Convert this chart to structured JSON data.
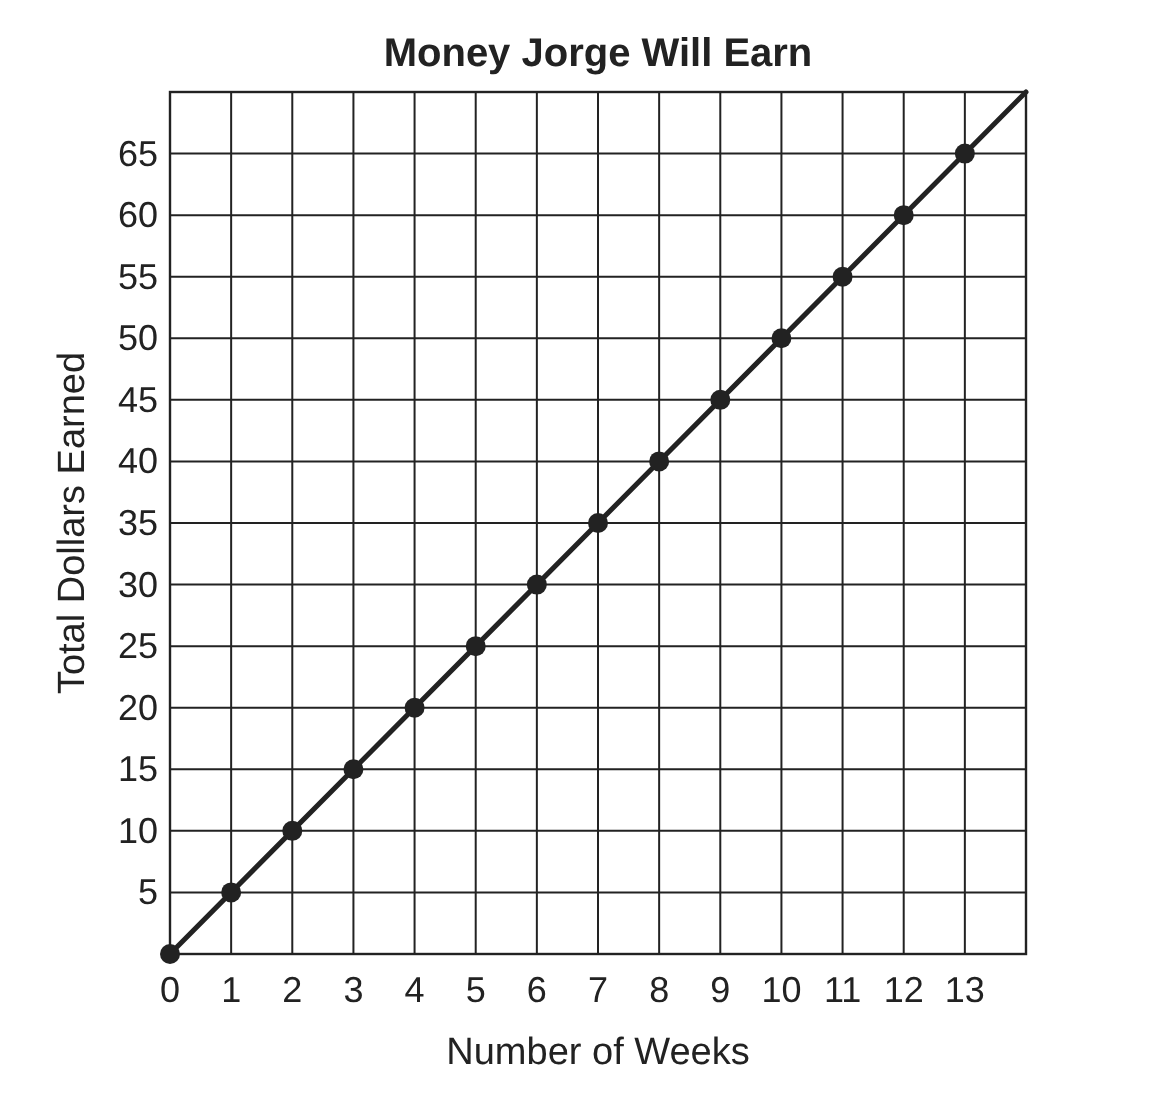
{
  "chart_data": {
    "type": "line",
    "title": "Money Jorge Will Earn",
    "xlabel": "Number of Weeks",
    "ylabel": "Total Dollars Earned",
    "xlim": [
      0,
      14
    ],
    "ylim": [
      0,
      70
    ],
    "xticks": [
      0,
      1,
      2,
      3,
      4,
      5,
      6,
      7,
      8,
      9,
      10,
      11,
      12,
      13
    ],
    "yticks": [
      5,
      10,
      15,
      20,
      25,
      30,
      35,
      40,
      45,
      50,
      55,
      60,
      65
    ],
    "grid": true,
    "series": [
      {
        "color": "#222222",
        "marker": "none",
        "x": [
          0,
          14
        ],
        "values": [
          0,
          70
        ]
      },
      {
        "type": "scatter",
        "color": "#222222",
        "marker": "circle",
        "x": [
          0,
          1,
          2,
          3,
          4,
          5,
          6,
          7,
          8,
          9,
          10,
          11,
          12,
          13
        ],
        "values": [
          0,
          5,
          10,
          15,
          20,
          25,
          30,
          35,
          40,
          45,
          50,
          55,
          60,
          65
        ]
      }
    ]
  }
}
